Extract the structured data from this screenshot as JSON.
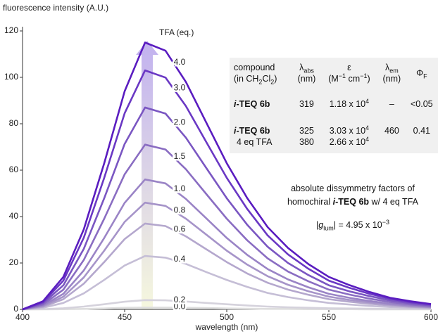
{
  "chart_data": {
    "type": "line",
    "title": "fluorescence intensity (A.U.)",
    "x_label": "wavelength (nm)",
    "legend_title": "TFA (eq.)",
    "x": [
      400,
      410,
      420,
      430,
      440,
      450,
      460,
      470,
      480,
      490,
      500,
      510,
      520,
      530,
      540,
      550,
      560,
      570,
      580,
      590,
      600
    ],
    "series": [
      {
        "name": "4.0",
        "color": "#5a1cc0",
        "values": [
          0,
          3.5,
          14,
          34.5,
          63,
          94,
          115,
          111.5,
          98,
          80.5,
          63,
          48,
          35.5,
          26.5,
          19.5,
          14,
          10.5,
          7.5,
          5,
          3.5,
          2.3
        ]
      },
      {
        "name": "3.0",
        "color": "#6a38c4",
        "values": [
          0,
          3.1,
          12.4,
          30.9,
          56.7,
          84.5,
          103,
          99.9,
          87.6,
          72.1,
          56.7,
          43.3,
          31.9,
          23.7,
          17.5,
          12.4,
          9.3,
          6.7,
          4.6,
          3.1,
          2.1
        ]
      },
      {
        "name": "2.0",
        "color": "#7a56c2",
        "values": [
          0,
          2.6,
          10.4,
          26.1,
          47.9,
          71.3,
          87,
          84.4,
          74,
          60.9,
          47.9,
          36.5,
          27,
          20,
          14.8,
          10.4,
          7.8,
          5.7,
          3.9,
          2.6,
          1.7
        ]
      },
      {
        "name": "1.5",
        "color": "#8a6dc2",
        "values": [
          0,
          2.1,
          8.5,
          21.3,
          39.1,
          58.2,
          71,
          68.9,
          60.4,
          49.7,
          39.1,
          29.8,
          22,
          16.3,
          12.1,
          8.5,
          6.4,
          4.6,
          3.2,
          2.1,
          1.4
        ]
      },
      {
        "name": "1.0",
        "color": "#9a84c6",
        "values": [
          0,
          1.7,
          6.7,
          16.8,
          30.8,
          45.9,
          56,
          54.3,
          47.6,
          39.2,
          30.8,
          23.5,
          17.4,
          12.9,
          9.5,
          6.7,
          5,
          3.6,
          2.5,
          1.7,
          1.1
        ]
      },
      {
        "name": "0.8",
        "color": "#a694c9",
        "values": [
          0,
          1.4,
          5.5,
          13.8,
          25.3,
          37.7,
          46,
          44.6,
          39.1,
          32.2,
          25.3,
          19.3,
          14.3,
          10.6,
          7.8,
          5.5,
          4.1,
          3,
          2.1,
          1.4,
          0.9
        ]
      },
      {
        "name": "0.6",
        "color": "#b4a7cd",
        "values": [
          0,
          1.1,
          4.4,
          11.1,
          20.4,
          30.3,
          37,
          35.9,
          31.5,
          25.9,
          20.4,
          15.5,
          11.5,
          8.5,
          6.3,
          4.4,
          3.3,
          2.4,
          1.7,
          1.1,
          0.7
        ]
      },
      {
        "name": "0.4",
        "color": "#c5bed6",
        "values": [
          0,
          0.7,
          2.8,
          6.9,
          12.7,
          18.9,
          23,
          22.3,
          19.6,
          16.1,
          12.7,
          9.7,
          7.1,
          5.3,
          3.9,
          2.8,
          2.1,
          1.5,
          1,
          0.7,
          0.5
        ]
      },
      {
        "name": "0.2",
        "color": "#d5d2dc",
        "values": [
          0,
          0.1,
          0.5,
          1.2,
          2.2,
          3.3,
          4,
          3.9,
          3.4,
          2.8,
          2.2,
          1.7,
          1.2,
          0.9,
          0.7,
          0.5,
          0.4,
          0.3,
          0.2,
          0.1,
          0.1
        ]
      },
      {
        "name": "0.0",
        "color": "#dedede",
        "values": [
          0,
          0,
          0.1,
          0.2,
          0.4,
          0.7,
          0.8,
          0.8,
          0.7,
          0.6,
          0.4,
          0.3,
          0.2,
          0.2,
          0.1,
          0.1,
          0.1,
          0,
          0,
          0,
          0
        ]
      }
    ],
    "xlim": [
      400,
      600
    ],
    "xticks": [
      400,
      450,
      500,
      550,
      600
    ],
    "ylim": [
      0,
      120
    ],
    "yticks": [
      0,
      20,
      40,
      60,
      80,
      100,
      120
    ]
  },
  "inset_table": {
    "header": [
      {
        "line1": "compound",
        "line2": "(in CH",
        "sub1": "2",
        "mid": "Cl",
        "sub2": "2",
        "end": ")"
      },
      {
        "symbol": "λ",
        "sub": "abs",
        "unit": "(nm)"
      },
      {
        "symbol": "ε",
        "unit": "(M",
        "sup1": "−1",
        "mid": " cm",
        "sup2": "−1",
        "end": ")"
      },
      {
        "symbol": "λ",
        "sub": "em",
        "unit": "(nm)"
      },
      {
        "symbol": "Φ",
        "sub": "F"
      }
    ],
    "rows": [
      {
        "prefix": "i",
        "name": "-TEQ 6b",
        "abs": "319",
        "eps": "1.18 x 10",
        "eps_exp": "4",
        "em": "–",
        "phi": "<0.05"
      },
      {
        "prefix": "i",
        "name": "-TEQ 6b",
        "note": "4 eq TFA",
        "abs": [
          "325",
          "380"
        ],
        "eps": [
          "3.03 x 10",
          "2.66 x 10"
        ],
        "eps_exp": [
          "4",
          "4"
        ],
        "em": "460",
        "phi": "0.41"
      }
    ]
  },
  "annotation": {
    "line1": "absolute dissymmetry factors of",
    "line2_start": "homochiral ",
    "prefix": "i",
    "name": "-TEQ 6b",
    "line2_end": " w/ 4 eq TFA",
    "glum_open": "|",
    "glum_symbol": "g",
    "glum_sub": "lum",
    "glum_value": "| = 4.95 x 10",
    "glum_exp": "−3"
  }
}
